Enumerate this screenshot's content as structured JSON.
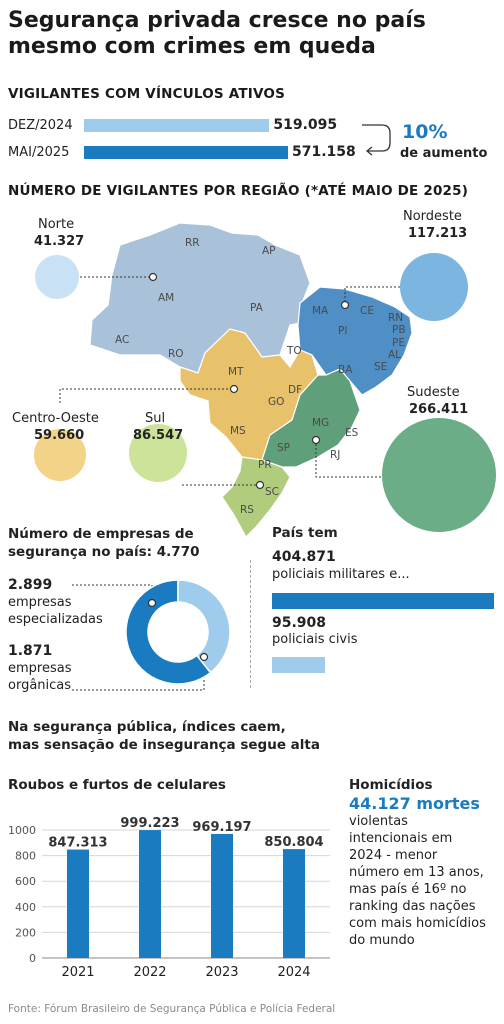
{
  "title": "Segurança privada cresce no país mesmo com crimes em queda",
  "vigilantes": {
    "heading": "VIGILANTES COM VÍNCULOS ATIVOS",
    "rows": [
      {
        "label": "DEZ/2024",
        "value": 519095,
        "value_label": "519.095",
        "color": "#9fcbec"
      },
      {
        "label": "MAI/2025",
        "value": 571158,
        "value_label": "571.158",
        "color": "#1a7bc1"
      }
    ],
    "increase": "10%",
    "increase_label": "de aumento"
  },
  "regioes": {
    "heading": "NÚMERO DE VIGILANTES POR REGIÃO (*ATÉ MAIO DE 2025)",
    "items": [
      {
        "name": "Norte",
        "value": 41327,
        "value_label": "41.327",
        "color": "#c9e1f5"
      },
      {
        "name": "Nordeste",
        "value": 117213,
        "value_label": "117.213",
        "color": "#7cb5e0"
      },
      {
        "name": "Centro-Oeste",
        "value": 59660,
        "value_label": "59.660",
        "color": "#f2d387"
      },
      {
        "name": "Sul",
        "value": 86547,
        "value_label": "86.547",
        "color": "#cde39a"
      },
      {
        "name": "Sudeste",
        "value": 266411,
        "value_label": "266.411",
        "color": "#6aad86"
      }
    ],
    "states": [
      "RR",
      "AP",
      "AM",
      "PA",
      "AC",
      "RO",
      "MA",
      "CE",
      "RN",
      "PI",
      "PB",
      "PE",
      "AL",
      "SE",
      "TO",
      "BA",
      "MT",
      "DF",
      "GO",
      "MG",
      "ES",
      "MS",
      "SP",
      "RJ",
      "PR",
      "SC",
      "RS"
    ]
  },
  "empresas": {
    "heading_1": "Número de empresas de",
    "heading_2": "segurança no país: 4.770",
    "total": 4770,
    "items": [
      {
        "value": 2899,
        "value_label": "2.899",
        "line1": "empresas",
        "line2": "especializadas",
        "color": "#1a7bc1"
      },
      {
        "value": 1871,
        "value_label": "1.871",
        "line1": "empresas",
        "line2": "orgânicas",
        "color": "#9fcbec"
      }
    ]
  },
  "policiais": {
    "heading": "País tem",
    "items": [
      {
        "value": 404871,
        "value_label": "404.871",
        "label": "policiais militares e...",
        "color": "#1a7bc1"
      },
      {
        "value": 95908,
        "value_label": "95.908",
        "label": "policiais civis",
        "color": "#9fcbec"
      }
    ]
  },
  "seguranca": {
    "line1": "Na segurança pública, índices caem,",
    "line2": "mas sensação de insegurança segue alta"
  },
  "chart_data": {
    "type": "bar",
    "title": "Roubos e furtos de celulares",
    "categories": [
      "2021",
      "2022",
      "2023",
      "2024"
    ],
    "values": [
      847.313,
      999.223,
      969.197,
      850.804
    ],
    "value_labels": [
      "847.313",
      "999.223",
      "969.197",
      "850.804"
    ],
    "yticks": [
      0,
      200,
      400,
      600,
      800,
      1000
    ],
    "ylim": [
      0,
      1000
    ],
    "grid": true,
    "color": "#1a7bc1"
  },
  "homicidios": {
    "title": "Homicídios",
    "highlight": "44.127 mortes",
    "lines": [
      "violentas",
      "intencionais em",
      "2024 - menor",
      "número em 13 anos,",
      "mas país é 16º no",
      "ranking das nações",
      "com mais homicídios",
      "do mundo"
    ]
  },
  "fonte": "Fonte: Fórum Brasileiro de Segurança Pública e Polícia Federal"
}
